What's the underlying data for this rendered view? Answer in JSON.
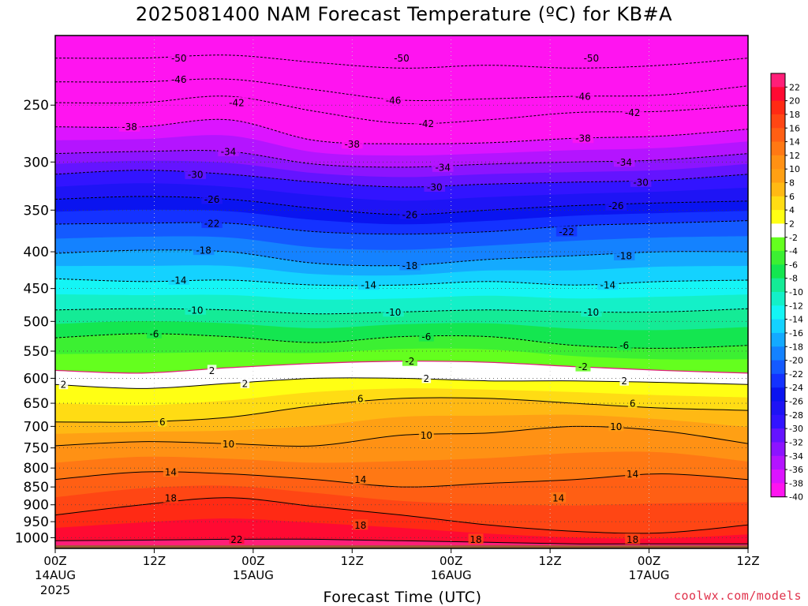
{
  "chart_data": {
    "type": "heatmap",
    "title": "2025081400 NAM Forecast Temperature (ºC) for KB#A",
    "xlabel": "Forecast Time (UTC)",
    "ylabel": "",
    "x_tick_labels": [
      {
        "hour": 0,
        "label": "00Z",
        "sub": "14AUG",
        "sub2": "2025"
      },
      {
        "hour": 12,
        "label": "12Z",
        "sub": "",
        "sub2": ""
      },
      {
        "hour": 24,
        "label": "00Z",
        "sub": "15AUG",
        "sub2": ""
      },
      {
        "hour": 36,
        "label": "12Z",
        "sub": "",
        "sub2": ""
      },
      {
        "hour": 48,
        "label": "00Z",
        "sub": "16AUG",
        "sub2": ""
      },
      {
        "hour": 60,
        "label": "12Z",
        "sub": "",
        "sub2": ""
      },
      {
        "hour": 72,
        "label": "00Z",
        "sub": "17AUG",
        "sub2": ""
      },
      {
        "hour": 84,
        "label": "12Z",
        "sub": "",
        "sub2": ""
      }
    ],
    "xlim": [
      0,
      84
    ],
    "y_ticks": [
      250,
      300,
      350,
      400,
      450,
      500,
      550,
      600,
      650,
      700,
      750,
      800,
      850,
      900,
      950,
      1000
    ],
    "ylim": [
      1035,
      200
    ],
    "y_scale": "log-pressure",
    "surface_pressure": 1025,
    "colorbar_ticks": [
      22,
      20,
      18,
      16,
      14,
      12,
      10,
      8,
      6,
      4,
      2,
      -2,
      -4,
      -6,
      -8,
      -10,
      -12,
      -14,
      -16,
      -18,
      -20,
      -22,
      -24,
      -26,
      -28,
      -30,
      -32,
      -34,
      -36,
      -38,
      -40
    ],
    "colorbar": [
      {
        "min": 22,
        "color": "#ff1e78"
      },
      {
        "min": 20,
        "color": "#ff0a32"
      },
      {
        "min": 18,
        "color": "#ff2a14"
      },
      {
        "min": 16,
        "color": "#ff4614"
      },
      {
        "min": 14,
        "color": "#ff5f14"
      },
      {
        "min": 12,
        "color": "#ff7814"
      },
      {
        "min": 10,
        "color": "#ff9114"
      },
      {
        "min": 8,
        "color": "#ffa014"
      },
      {
        "min": 6,
        "color": "#ffb914"
      },
      {
        "min": 4,
        "color": "#ffdc14"
      },
      {
        "min": 2,
        "color": "#ffff14"
      },
      {
        "min": -2,
        "color": "#ffffff"
      },
      {
        "min": -4,
        "color": "#64ff1e"
      },
      {
        "min": -6,
        "color": "#3cf032"
      },
      {
        "min": -8,
        "color": "#14e650"
      },
      {
        "min": -10,
        "color": "#14eb96"
      },
      {
        "min": -12,
        "color": "#14f0c8"
      },
      {
        "min": -14,
        "color": "#14f5f5"
      },
      {
        "min": -16,
        "color": "#14d2ff"
      },
      {
        "min": -18,
        "color": "#14aaff"
      },
      {
        "min": -20,
        "color": "#1482ff"
      },
      {
        "min": -22,
        "color": "#145aff"
      },
      {
        "min": -24,
        "color": "#1432ff"
      },
      {
        "min": -26,
        "color": "#0a14f0"
      },
      {
        "min": -28,
        "color": "#1e14f5"
      },
      {
        "min": -30,
        "color": "#3214ff"
      },
      {
        "min": -32,
        "color": "#6414ff"
      },
      {
        "min": -34,
        "color": "#8c14ff"
      },
      {
        "min": -36,
        "color": "#b414ff"
      },
      {
        "min": -38,
        "color": "#dc14ff"
      },
      {
        "min": -40,
        "color": "#ff14f0"
      },
      {
        "min": -100,
        "color": "#ff14f0"
      }
    ],
    "isotherms": [
      {
        "t": 22,
        "p": [
          1010,
          1008,
          1005,
          1005,
          1010,
          1015,
          1020,
          1020,
          1020
        ]
      },
      {
        "t": 18,
        "p": [
          930,
          900,
          880,
          905,
          930,
          960,
          980,
          985,
          960
        ]
      },
      {
        "t": 14,
        "p": [
          830,
          810,
          815,
          830,
          850,
          840,
          830,
          815,
          830
        ]
      },
      {
        "t": 10,
        "p": [
          745,
          735,
          740,
          745,
          720,
          715,
          700,
          710,
          740
        ]
      },
      {
        "t": 6,
        "p": [
          690,
          690,
          680,
          655,
          640,
          640,
          650,
          660,
          665
        ]
      },
      {
        "t": 2,
        "p": [
          612,
          620,
          610,
          600,
          600,
          605,
          605,
          608,
          612
        ]
      },
      {
        "t": -2,
        "p": [
          585,
          590,
          580,
          572,
          568,
          570,
          578,
          585,
          590
        ]
      },
      {
        "t": -6,
        "p": [
          527,
          520,
          525,
          535,
          525,
          525,
          540,
          545,
          540
        ]
      },
      {
        "t": -10,
        "p": [
          482,
          480,
          482,
          488,
          485,
          482,
          485,
          485,
          480
        ]
      },
      {
        "t": -14,
        "p": [
          436,
          440,
          438,
          445,
          445,
          440,
          445,
          440,
          438
        ]
      },
      {
        "t": -18,
        "p": [
          402,
          398,
          400,
          415,
          418,
          410,
          405,
          400,
          400
        ]
      },
      {
        "t": -22,
        "p": [
          366,
          365,
          365,
          375,
          378,
          375,
          368,
          365,
          362
        ]
      },
      {
        "t": -26,
        "p": [
          338,
          335,
          338,
          348,
          355,
          350,
          345,
          342,
          340
        ]
      },
      {
        "t": -30,
        "p": [
          312,
          308,
          312,
          320,
          325,
          322,
          320,
          318,
          312
        ]
      },
      {
        "t": -34,
        "p": [
          292,
          290,
          290,
          302,
          305,
          302,
          300,
          298,
          292
        ]
      },
      {
        "t": -38,
        "p": [
          268,
          268,
          262,
          280,
          283,
          282,
          278,
          276,
          270
        ]
      },
      {
        "t": -42,
        "p": [
          248,
          248,
          243,
          255,
          265,
          262,
          256,
          255,
          250
        ]
      },
      {
        "t": -46,
        "p": [
          232,
          232,
          230,
          238,
          246,
          245,
          243,
          242,
          235
        ]
      },
      {
        "t": -50,
        "p": [
          215,
          215,
          213,
          218,
          222,
          220,
          222,
          220,
          215
        ]
      }
    ],
    "contour_labels": [
      {
        "text": "-50",
        "hour": 15,
        "p": 215
      },
      {
        "text": "-50",
        "hour": 42,
        "p": 215
      },
      {
        "text": "-50",
        "hour": 65,
        "p": 215
      },
      {
        "text": "-46",
        "hour": 15,
        "p": 230
      },
      {
        "text": "-46",
        "hour": 41,
        "p": 246
      },
      {
        "text": "-46",
        "hour": 64,
        "p": 243
      },
      {
        "text": "-42",
        "hour": 22,
        "p": 248
      },
      {
        "text": "-42",
        "hour": 45,
        "p": 265
      },
      {
        "text": "-42",
        "hour": 70,
        "p": 256
      },
      {
        "text": "-38",
        "hour": 9,
        "p": 268
      },
      {
        "text": "-38",
        "hour": 36,
        "p": 283
      },
      {
        "text": "-38",
        "hour": 64,
        "p": 278
      },
      {
        "text": "-34",
        "hour": 21,
        "p": 290
      },
      {
        "text": "-34",
        "hour": 47,
        "p": 305
      },
      {
        "text": "-34",
        "hour": 69,
        "p": 300
      },
      {
        "text": "-30",
        "hour": 17,
        "p": 312
      },
      {
        "text": "-30",
        "hour": 46,
        "p": 325
      },
      {
        "text": "-30",
        "hour": 71,
        "p": 320
      },
      {
        "text": "-26",
        "hour": 19,
        "p": 338
      },
      {
        "text": "-26",
        "hour": 43,
        "p": 355
      },
      {
        "text": "-26",
        "hour": 68,
        "p": 345
      },
      {
        "text": "-22",
        "hour": 19,
        "p": 365
      },
      {
        "text": "-22",
        "hour": 62,
        "p": 375
      },
      {
        "text": "-18",
        "hour": 18,
        "p": 398
      },
      {
        "text": "-18",
        "hour": 43,
        "p": 418
      },
      {
        "text": "-18",
        "hour": 69,
        "p": 405
      },
      {
        "text": "-14",
        "hour": 15,
        "p": 438
      },
      {
        "text": "-14",
        "hour": 38,
        "p": 445
      },
      {
        "text": "-14",
        "hour": 67,
        "p": 445
      },
      {
        "text": "-10",
        "hour": 17,
        "p": 482
      },
      {
        "text": "-10",
        "hour": 41,
        "p": 485
      },
      {
        "text": "-10",
        "hour": 65,
        "p": 485
      },
      {
        "text": "-6",
        "hour": 12,
        "p": 520
      },
      {
        "text": "-6",
        "hour": 45,
        "p": 525
      },
      {
        "text": "-6",
        "hour": 69,
        "p": 540
      },
      {
        "text": "-2",
        "hour": 43,
        "p": 568
      },
      {
        "text": "-2",
        "hour": 64,
        "p": 578
      },
      {
        "text": "2",
        "hour": 1,
        "p": 612
      },
      {
        "text": "2",
        "hour": 19,
        "p": 585
      },
      {
        "text": "2",
        "hour": 23,
        "p": 610
      },
      {
        "text": "2",
        "hour": 45,
        "p": 600
      },
      {
        "text": "2",
        "hour": 69,
        "p": 605
      },
      {
        "text": "6",
        "hour": 13,
        "p": 690
      },
      {
        "text": "6",
        "hour": 37,
        "p": 640
      },
      {
        "text": "6",
        "hour": 70,
        "p": 650
      },
      {
        "text": "10",
        "hour": 21,
        "p": 740
      },
      {
        "text": "10",
        "hour": 45,
        "p": 720
      },
      {
        "text": "10",
        "hour": 68,
        "p": 700
      },
      {
        "text": "14",
        "hour": 14,
        "p": 810
      },
      {
        "text": "14",
        "hour": 37,
        "p": 830
      },
      {
        "text": "14",
        "hour": 70,
        "p": 815
      },
      {
        "text": "14",
        "hour": 61,
        "p": 880
      },
      {
        "text": "18",
        "hour": 14,
        "p": 880
      },
      {
        "text": "18",
        "hour": 37,
        "p": 960
      },
      {
        "text": "18",
        "hour": 51,
        "p": 1005
      },
      {
        "text": "18",
        "hour": 70,
        "p": 1005
      },
      {
        "text": "22",
        "hour": 22,
        "p": 1005
      }
    ]
  },
  "credit": "coolwx.com/models"
}
